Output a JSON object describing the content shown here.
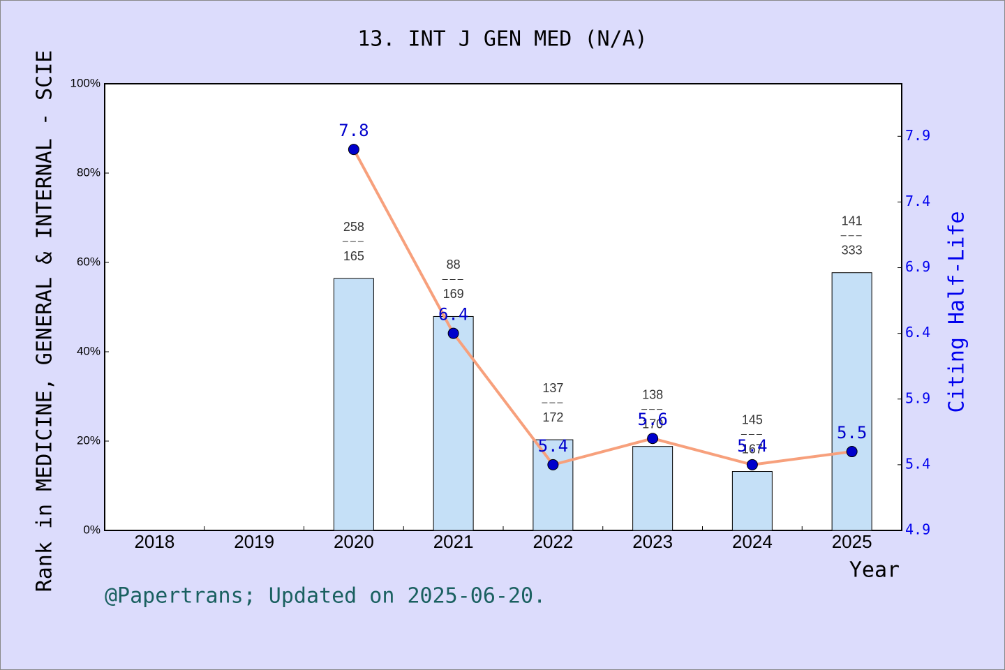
{
  "chart_data": {
    "type": "combo",
    "title": "13. INT J GEN MED (N/A)",
    "x_label": "Year",
    "y_label": "Rank in MEDICINE, GENERAL & INTERNAL - SCIE",
    "y2_label": "Citing Half-Life",
    "footer": "@Papertrans; Updated on 2025-06-20.",
    "categories": [
      "2018",
      "2019",
      "2020",
      "2021",
      "2022",
      "2023",
      "2024",
      "2025"
    ],
    "series": [
      {
        "type": "bar",
        "color": "#c5e0f7",
        "values": [
          null,
          null,
          56.4,
          47.9,
          20.3,
          18.8,
          13.2,
          57.7
        ],
        "annotations": [
          null,
          null,
          {
            "rank": 258,
            "total": 165
          },
          {
            "rank": 88,
            "total": 169
          },
          {
            "rank": 137,
            "total": 172
          },
          {
            "rank": 138,
            "total": 170
          },
          {
            "rank": 145,
            "total": 167
          },
          {
            "rank": 141,
            "total": 333
          }
        ]
      },
      {
        "type": "line",
        "axis": "y2",
        "color": "#f7a07c",
        "marker_color": "#0000cc",
        "values": [
          null,
          null,
          7.8,
          6.4,
          5.4,
          5.6,
          5.4,
          5.5
        ]
      }
    ],
    "ylim": [
      0,
      100
    ],
    "yticks": [
      {
        "value": 0,
        "label": "0%"
      },
      {
        "value": 20,
        "label": "20%"
      },
      {
        "value": 40,
        "label": "40%"
      },
      {
        "value": 60,
        "label": "60%"
      },
      {
        "value": 80,
        "label": "80%"
      },
      {
        "value": 100,
        "label": "100%"
      }
    ],
    "y2lim": [
      4.9,
      8.3
    ],
    "y2ticks": [
      4.9,
      5.4,
      5.9,
      6.4,
      6.9,
      7.4,
      7.9
    ]
  }
}
